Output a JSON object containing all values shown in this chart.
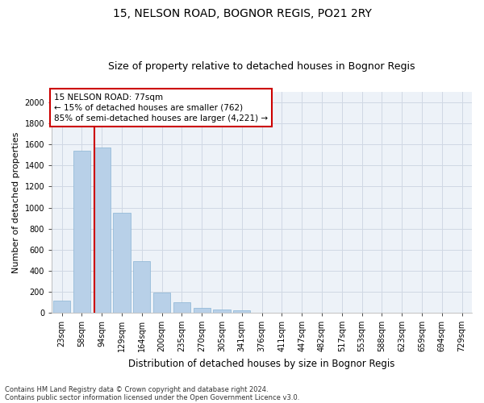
{
  "title1": "15, NELSON ROAD, BOGNOR REGIS, PO21 2RY",
  "title2": "Size of property relative to detached houses in Bognor Regis",
  "xlabel": "Distribution of detached houses by size in Bognor Regis",
  "ylabel": "Number of detached properties",
  "categories": [
    "23sqm",
    "58sqm",
    "94sqm",
    "129sqm",
    "164sqm",
    "200sqm",
    "235sqm",
    "270sqm",
    "305sqm",
    "341sqm",
    "376sqm",
    "411sqm",
    "447sqm",
    "482sqm",
    "517sqm",
    "553sqm",
    "588sqm",
    "623sqm",
    "659sqm",
    "694sqm",
    "729sqm"
  ],
  "values": [
    110,
    1545,
    1570,
    950,
    490,
    190,
    95,
    45,
    30,
    20,
    0,
    0,
    0,
    0,
    0,
    0,
    0,
    0,
    0,
    0,
    0
  ],
  "bar_color": "#b8d0e8",
  "bar_edge_color": "#8ab4d4",
  "vline_x_index": 1.62,
  "vline_color": "#cc0000",
  "annotation_text": "15 NELSON ROAD: 77sqm\n← 15% of detached houses are smaller (762)\n85% of semi-detached houses are larger (4,221) →",
  "annotation_box_color": "#ffffff",
  "annotation_box_edge_color": "#cc0000",
  "ylim": [
    0,
    2100
  ],
  "yticks": [
    0,
    200,
    400,
    600,
    800,
    1000,
    1200,
    1400,
    1600,
    1800,
    2000
  ],
  "grid_color": "#d0d8e4",
  "bg_color": "#edf2f8",
  "footnote1": "Contains HM Land Registry data © Crown copyright and database right 2024.",
  "footnote2": "Contains public sector information licensed under the Open Government Licence v3.0.",
  "title1_fontsize": 10,
  "title2_fontsize": 9,
  "annotation_fontsize": 7.5,
  "tick_fontsize": 7,
  "ylabel_fontsize": 8,
  "xlabel_fontsize": 8.5
}
